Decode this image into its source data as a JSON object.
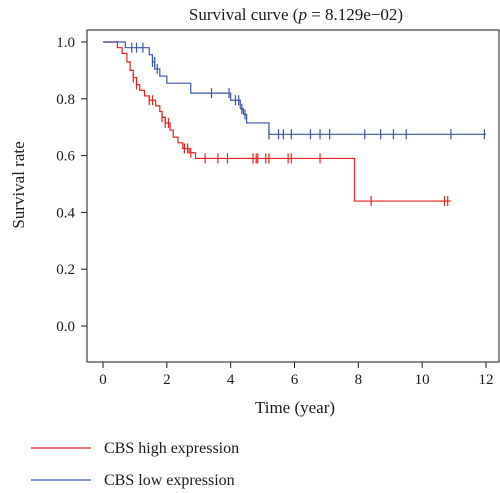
{
  "chart_data": {
    "type": "line",
    "title": "Survival curve",
    "title_stat_symbol": "p",
    "title_stat_value": "8.129e−02",
    "xlabel": "Time (year)",
    "ylabel": "Survival rate",
    "xlim": [
      0,
      12
    ],
    "ylim": [
      0,
      1
    ],
    "x_ticks": [
      0,
      2,
      4,
      6,
      8,
      10,
      12
    ],
    "x_tick_labels": [
      "0",
      "2",
      "4",
      "6",
      "8",
      "10",
      "12"
    ],
    "y_ticks": [
      0.0,
      0.2,
      0.4,
      0.6,
      0.8,
      1.0
    ],
    "y_tick_labels": [
      "0.0",
      "0.2",
      "0.4",
      "0.6",
      "0.8",
      "1.0"
    ],
    "grid": false,
    "legend_position": "bottom-left",
    "series": [
      {
        "name": "CBS high expression",
        "color": "#e8211e",
        "step_x": [
          0,
          0.45,
          0.6,
          0.75,
          0.85,
          0.95,
          1.05,
          1.15,
          1.3,
          1.45,
          1.65,
          1.78,
          1.85,
          1.95,
          2.1,
          2.2,
          2.35,
          2.5,
          2.7,
          2.9,
          7.88,
          10.9
        ],
        "step_y": [
          1.0,
          0.98,
          0.96,
          0.93,
          0.9,
          0.875,
          0.85,
          0.83,
          0.81,
          0.795,
          0.775,
          0.755,
          0.735,
          0.715,
          0.69,
          0.665,
          0.645,
          0.625,
          0.61,
          0.59,
          0.44,
          0.44
        ],
        "censor_x": [
          0.95,
          1.05,
          1.45,
          1.55,
          1.85,
          1.95,
          2.05,
          2.55,
          2.65,
          2.75,
          3.2,
          3.6,
          3.9,
          4.7,
          4.8,
          4.85,
          5.1,
          5.2,
          5.8,
          5.9,
          6.8,
          8.4,
          10.7,
          10.8
        ],
        "censor_y": [
          0.875,
          0.85,
          0.795,
          0.795,
          0.735,
          0.715,
          0.715,
          0.625,
          0.625,
          0.61,
          0.59,
          0.59,
          0.59,
          0.59,
          0.59,
          0.59,
          0.59,
          0.59,
          0.59,
          0.59,
          0.59,
          0.44,
          0.44,
          0.44
        ]
      },
      {
        "name": "CBS low expression",
        "color": "#3a55a4",
        "step_x": [
          0,
          0.7,
          1.45,
          1.55,
          1.62,
          1.78,
          2.0,
          2.75,
          4.0,
          4.3,
          4.4,
          4.5,
          5.2,
          12.0
        ],
        "step_y": [
          1.0,
          0.98,
          0.955,
          0.93,
          0.905,
          0.88,
          0.855,
          0.82,
          0.795,
          0.765,
          0.745,
          0.715,
          0.675,
          0.675
        ],
        "censor_x": [
          0.9,
          1.05,
          1.25,
          1.55,
          1.62,
          1.7,
          3.4,
          3.95,
          4.15,
          4.25,
          4.35,
          4.45,
          5.2,
          5.5,
          5.65,
          5.9,
          6.5,
          6.8,
          7.1,
          8.2,
          8.7,
          9.1,
          9.5,
          10.9,
          11.95
        ],
        "censor_y": [
          0.98,
          0.98,
          0.98,
          0.93,
          0.93,
          0.905,
          0.82,
          0.82,
          0.795,
          0.795,
          0.765,
          0.745,
          0.675,
          0.675,
          0.675,
          0.675,
          0.675,
          0.675,
          0.675,
          0.675,
          0.675,
          0.675,
          0.675,
          0.675,
          0.675
        ]
      }
    ]
  }
}
